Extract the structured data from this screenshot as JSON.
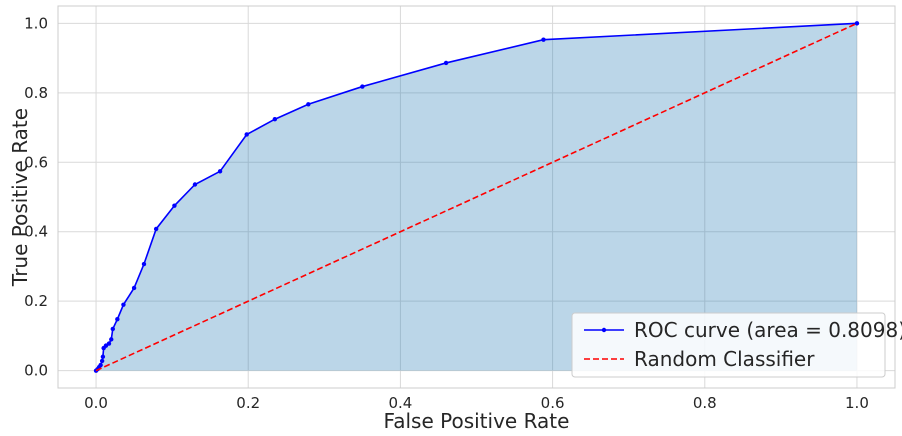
{
  "chart_data": {
    "type": "line",
    "xlabel": "False Positive Rate",
    "ylabel": "True Positive Rate",
    "xlim": [
      -0.05,
      1.05
    ],
    "ylim": [
      -0.05,
      1.05
    ],
    "xticks": [
      "0.0",
      "0.2",
      "0.4",
      "0.6",
      "0.8",
      "1.0"
    ],
    "yticks": [
      "0.0",
      "0.2",
      "0.4",
      "0.6",
      "0.8",
      "1.0"
    ],
    "grid": true,
    "legend_position": "bottom-right",
    "series": [
      {
        "name": "ROC curve (area = 0.8098)",
        "color": "#0000ff",
        "style": "solid",
        "marker": "dot",
        "fill_under": true,
        "fill_color": "#1f77b4",
        "points": [
          [
            0.0,
            0.0
          ],
          [
            0.002,
            0.004
          ],
          [
            0.004,
            0.01
          ],
          [
            0.006,
            0.016
          ],
          [
            0.008,
            0.028
          ],
          [
            0.009,
            0.04
          ],
          [
            0.01,
            0.065
          ],
          [
            0.013,
            0.072
          ],
          [
            0.017,
            0.078
          ],
          [
            0.02,
            0.09
          ],
          [
            0.022,
            0.12
          ],
          [
            0.028,
            0.148
          ],
          [
            0.036,
            0.19
          ],
          [
            0.05,
            0.238
          ],
          [
            0.063,
            0.307
          ],
          [
            0.079,
            0.408
          ],
          [
            0.103,
            0.475
          ],
          [
            0.13,
            0.536
          ],
          [
            0.163,
            0.574
          ],
          [
            0.198,
            0.68
          ],
          [
            0.235,
            0.724
          ],
          [
            0.279,
            0.767
          ],
          [
            0.35,
            0.818
          ],
          [
            0.46,
            0.886
          ],
          [
            0.588,
            0.953
          ],
          [
            1.0,
            1.0
          ]
        ]
      },
      {
        "name": "Random Classifier",
        "color": "#ff0000",
        "style": "dashed",
        "points": [
          [
            0.0,
            0.0
          ],
          [
            1.0,
            1.0
          ]
        ]
      }
    ]
  }
}
